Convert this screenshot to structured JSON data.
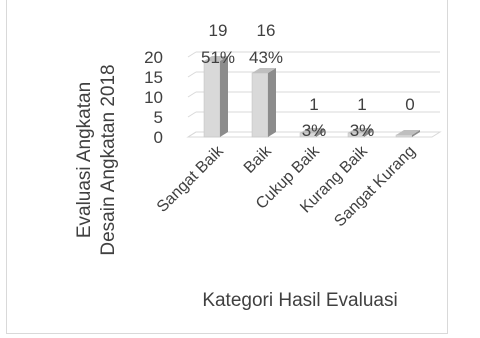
{
  "chart_data": {
    "type": "bar",
    "style": "3d-column",
    "categories": [
      "Sangat Baik",
      "Baik",
      "Cukup Baik",
      "Kurang Baik",
      "Sangat Kurang"
    ],
    "values": [
      19,
      16,
      1,
      1,
      0
    ],
    "percent_labels": [
      "51%",
      "43%",
      "3%",
      "3%",
      ""
    ],
    "xlabel": "Kategori Hasil Evaluasi",
    "ylabel_line1": "Evaluasi Angkatan",
    "ylabel_line2": "Desain Angkatan 2018",
    "yticks": [
      0,
      5,
      10,
      15,
      20
    ],
    "ylim": [
      0,
      20
    ],
    "grid": true,
    "bar_front_color": "#d9d9d9",
    "bar_side_color": "#8c8c8c",
    "bar_top_color": "#bfbfbf"
  }
}
